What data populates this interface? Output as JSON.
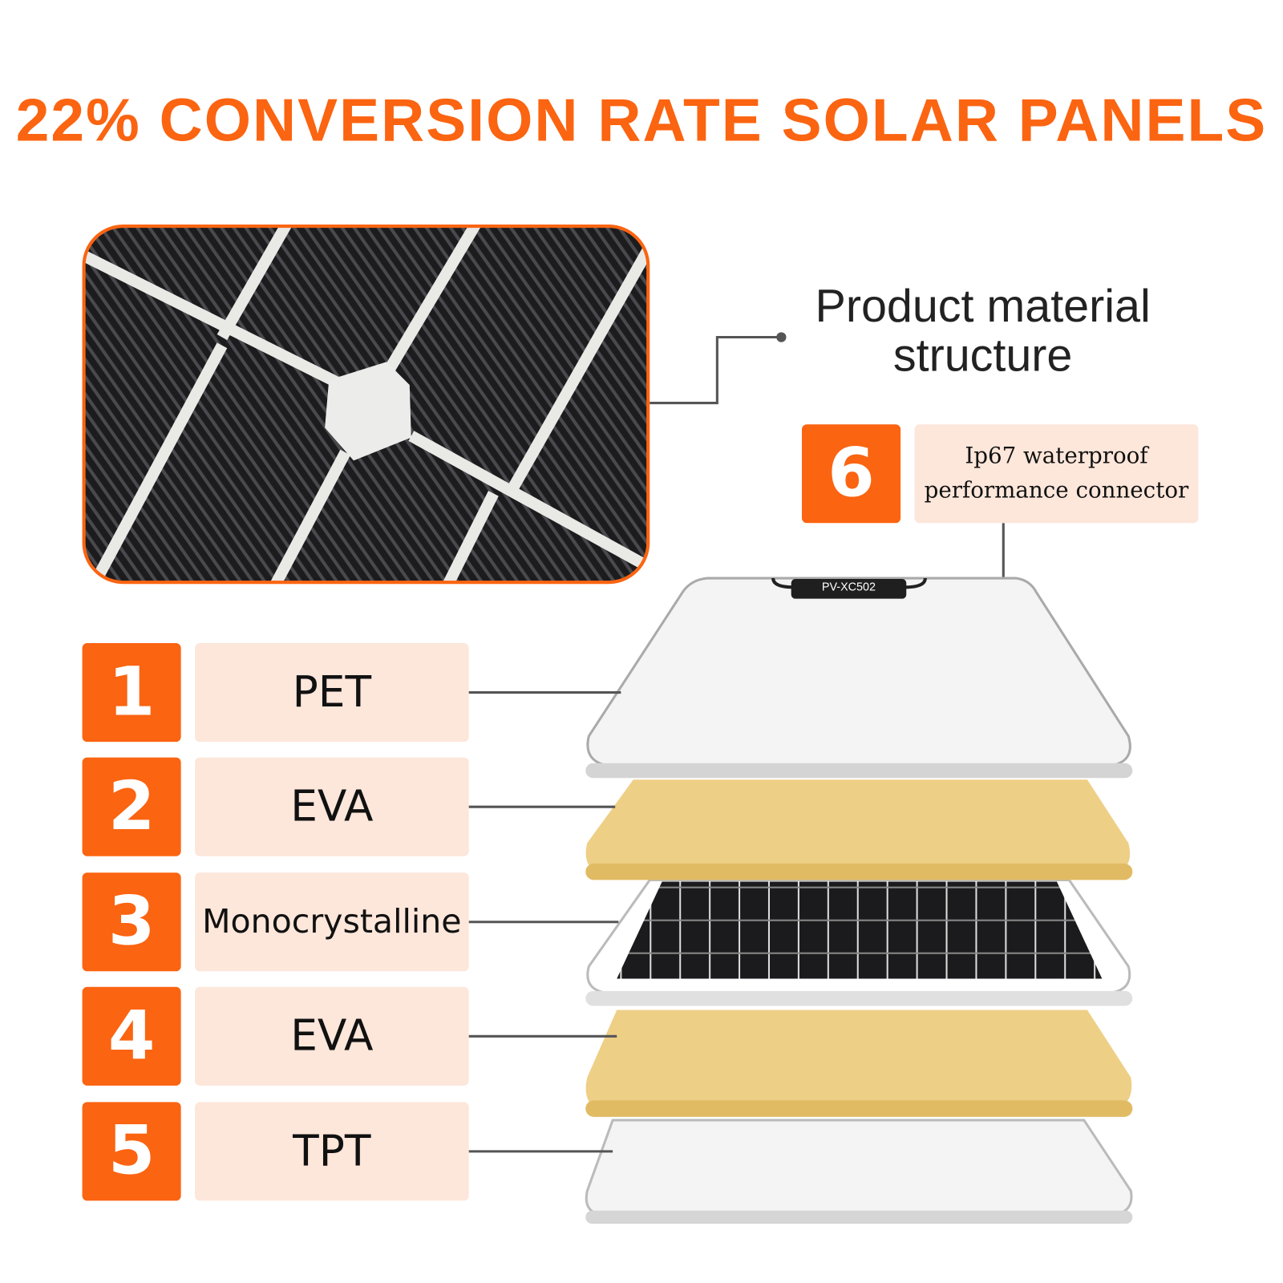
{
  "title": "22% CONVERSION RATE SOLAR PANELS",
  "callout": "Product material structure",
  "connector": {
    "number": 6,
    "label": "Ip67 waterproof performance connector",
    "model": "PV-XC502"
  },
  "layers": [
    {
      "number": 1,
      "label": "PET"
    },
    {
      "number": 2,
      "label": "EVA"
    },
    {
      "number": 3,
      "label": "Monocrystalline"
    },
    {
      "number": 4,
      "label": "EVA"
    },
    {
      "number": 5,
      "label": "TPT"
    }
  ]
}
